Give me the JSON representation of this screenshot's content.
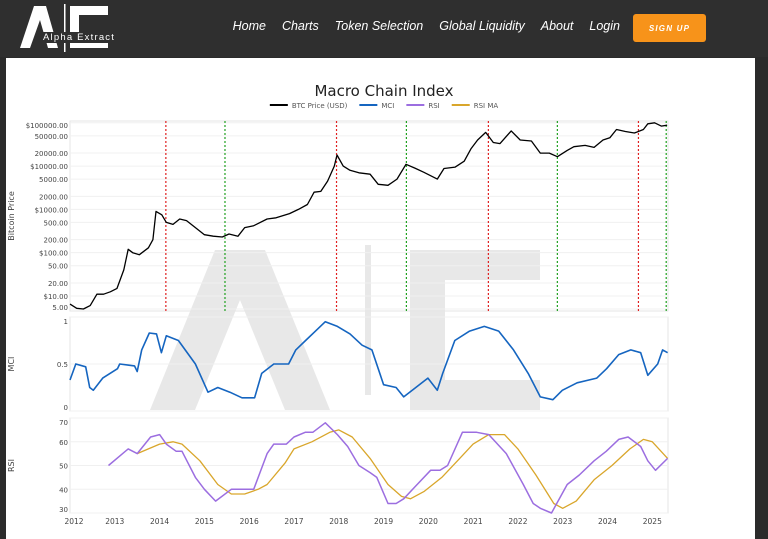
{
  "header": {
    "logo_text": "Alpha Extract",
    "nav": [
      "Home",
      "Charts",
      "Token Selection",
      "Global Liquidity",
      "About",
      "Login"
    ],
    "signup_label": "SIGN UP"
  },
  "colors": {
    "btc": "#000000",
    "mci": "#1565c0",
    "rsi": "#9c6ee0",
    "rsi_ma": "#d9a62b",
    "top_line": "#e02020",
    "bottom_line": "#1fa01f",
    "accent": "#f7931a"
  },
  "chart_data": {
    "type": "line",
    "title": "Macro Chain Index",
    "legend": [
      "BTC Price (USD)",
      "MCI",
      "RSI",
      "RSI MA"
    ],
    "legend_placement": "top-center",
    "x_ticks": [
      "2012",
      "2013",
      "2014",
      "2015",
      "2016",
      "2017",
      "2018",
      "2019",
      "2020",
      "2021",
      "2022",
      "2023",
      "2024",
      "2025"
    ],
    "xlim": [
      2012,
      2025.35
    ],
    "price_panel": {
      "ylabel": "Bitcoin Price",
      "scale": "log",
      "ylim": [
        4.5,
        110000
      ],
      "y_ticks": [
        {
          "v": 5,
          "l": "5.00"
        },
        {
          "v": 10,
          "l": "$10.00"
        },
        {
          "v": 20,
          "l": "20.00"
        },
        {
          "v": 50,
          "l": "50.00"
        },
        {
          "v": 100,
          "l": "$100.00"
        },
        {
          "v": 200,
          "l": "200.00"
        },
        {
          "v": 500,
          "l": "500.00"
        },
        {
          "v": 1000,
          "l": "$1000.00"
        },
        {
          "v": 2000,
          "l": "2000.00"
        },
        {
          "v": 5000,
          "l": "5000.00"
        },
        {
          "v": 10000,
          "l": "$10000.00"
        },
        {
          "v": 20000,
          "l": "20000.00"
        },
        {
          "v": 50000,
          "l": "50000.00"
        },
        {
          "v": 100000,
          "l": "$100000.00"
        }
      ],
      "btc": [
        [
          2012.0,
          6.5
        ],
        [
          2012.15,
          5.2
        ],
        [
          2012.3,
          5
        ],
        [
          2012.45,
          6
        ],
        [
          2012.6,
          11
        ],
        [
          2012.75,
          11
        ],
        [
          2012.9,
          12.5
        ],
        [
          2013.05,
          15
        ],
        [
          2013.2,
          40
        ],
        [
          2013.3,
          120
        ],
        [
          2013.4,
          100
        ],
        [
          2013.55,
          90
        ],
        [
          2013.75,
          130
        ],
        [
          2013.85,
          200
        ],
        [
          2013.92,
          900
        ],
        [
          2014.05,
          750
        ],
        [
          2014.15,
          500
        ],
        [
          2014.3,
          450
        ],
        [
          2014.45,
          600
        ],
        [
          2014.6,
          550
        ],
        [
          2014.8,
          380
        ],
        [
          2015.0,
          260
        ],
        [
          2015.2,
          240
        ],
        [
          2015.4,
          230
        ],
        [
          2015.55,
          270
        ],
        [
          2015.75,
          240
        ],
        [
          2015.9,
          380
        ],
        [
          2016.1,
          420
        ],
        [
          2016.4,
          600
        ],
        [
          2016.6,
          640
        ],
        [
          2016.9,
          800
        ],
        [
          2017.1,
          1000
        ],
        [
          2017.3,
          1300
        ],
        [
          2017.45,
          2500
        ],
        [
          2017.6,
          2600
        ],
        [
          2017.75,
          4500
        ],
        [
          2017.9,
          10000
        ],
        [
          2017.96,
          18000
        ],
        [
          2018.1,
          10000
        ],
        [
          2018.25,
          8000
        ],
        [
          2018.45,
          7000
        ],
        [
          2018.7,
          6500
        ],
        [
          2018.88,
          3800
        ],
        [
          2019.1,
          3600
        ],
        [
          2019.3,
          5000
        ],
        [
          2019.5,
          11000
        ],
        [
          2019.7,
          9000
        ],
        [
          2019.9,
          7200
        ],
        [
          2020.2,
          5000
        ],
        [
          2020.35,
          8800
        ],
        [
          2020.6,
          9500
        ],
        [
          2020.8,
          13000
        ],
        [
          2020.95,
          25000
        ],
        [
          2021.1,
          40000
        ],
        [
          2021.28,
          60000
        ],
        [
          2021.45,
          35000
        ],
        [
          2021.6,
          33000
        ],
        [
          2021.85,
          65000
        ],
        [
          2022.05,
          40000
        ],
        [
          2022.3,
          38000
        ],
        [
          2022.5,
          20000
        ],
        [
          2022.7,
          20000
        ],
        [
          2022.88,
          16500
        ],
        [
          2023.1,
          23000
        ],
        [
          2023.25,
          28000
        ],
        [
          2023.5,
          30000
        ],
        [
          2023.7,
          27000
        ],
        [
          2023.9,
          40000
        ],
        [
          2024.05,
          45000
        ],
        [
          2024.2,
          70000
        ],
        [
          2024.4,
          63000
        ],
        [
          2024.6,
          58000
        ],
        [
          2024.8,
          70000
        ],
        [
          2024.9,
          95000
        ],
        [
          2025.05,
          100000
        ],
        [
          2025.2,
          84000
        ],
        [
          2025.33,
          88000
        ]
      ],
      "top_markers": [
        2014.14,
        2017.95,
        2021.34,
        2024.69
      ],
      "bottom_markers": [
        2015.46,
        2019.51,
        2022.88,
        2025.31
      ]
    },
    "mci_panel": {
      "ylabel": "MCI",
      "ylim": [
        0,
        1
      ],
      "y_ticks": [
        {
          "v": 0,
          "l": "0"
        },
        {
          "v": 0.5,
          "l": "0.5"
        },
        {
          "v": 1,
          "l": "1"
        }
      ],
      "mci": [
        [
          2012.0,
          0.33
        ],
        [
          2012.13,
          0.5
        ],
        [
          2012.35,
          0.47
        ],
        [
          2012.44,
          0.25
        ],
        [
          2012.52,
          0.22
        ],
        [
          2012.73,
          0.35
        ],
        [
          2013.06,
          0.45
        ],
        [
          2013.11,
          0.5
        ],
        [
          2013.44,
          0.48
        ],
        [
          2013.5,
          0.42
        ],
        [
          2013.6,
          0.65
        ],
        [
          2013.77,
          0.83
        ],
        [
          2013.93,
          0.82
        ],
        [
          2014.04,
          0.62
        ],
        [
          2014.15,
          0.8
        ],
        [
          2014.42,
          0.75
        ],
        [
          2014.8,
          0.5
        ],
        [
          2015.08,
          0.2
        ],
        [
          2015.3,
          0.25
        ],
        [
          2015.57,
          0.2
        ],
        [
          2015.84,
          0.14
        ],
        [
          2016.12,
          0.14
        ],
        [
          2016.28,
          0.4
        ],
        [
          2016.55,
          0.5
        ],
        [
          2016.88,
          0.5
        ],
        [
          2017.04,
          0.65
        ],
        [
          2017.26,
          0.75
        ],
        [
          2017.48,
          0.85
        ],
        [
          2017.7,
          0.95
        ],
        [
          2017.97,
          0.9
        ],
        [
          2018.25,
          0.82
        ],
        [
          2018.52,
          0.7
        ],
        [
          2018.74,
          0.65
        ],
        [
          2019.0,
          0.28
        ],
        [
          2019.28,
          0.25
        ],
        [
          2019.45,
          0.15
        ],
        [
          2019.72,
          0.25
        ],
        [
          2019.99,
          0.35
        ],
        [
          2020.2,
          0.22
        ],
        [
          2020.32,
          0.4
        ],
        [
          2020.59,
          0.75
        ],
        [
          2020.92,
          0.85
        ],
        [
          2021.25,
          0.9
        ],
        [
          2021.57,
          0.85
        ],
        [
          2021.9,
          0.65
        ],
        [
          2022.23,
          0.4
        ],
        [
          2022.5,
          0.15
        ],
        [
          2022.78,
          0.12
        ],
        [
          2022.99,
          0.22
        ],
        [
          2023.32,
          0.3
        ],
        [
          2023.76,
          0.35
        ],
        [
          2023.98,
          0.45
        ],
        [
          2024.25,
          0.6
        ],
        [
          2024.52,
          0.65
        ],
        [
          2024.74,
          0.62
        ],
        [
          2024.9,
          0.38
        ],
        [
          2025.12,
          0.5
        ],
        [
          2025.23,
          0.65
        ],
        [
          2025.34,
          0.62
        ]
      ]
    },
    "rsi_panel": {
      "ylabel": "RSI",
      "ylim": [
        30,
        70
      ],
      "y_ticks": [
        {
          "v": 30,
          "l": "30"
        },
        {
          "v": 40,
          "l": "40"
        },
        {
          "v": 50,
          "l": "50"
        },
        {
          "v": 60,
          "l": "60"
        },
        {
          "v": 70,
          "l": "70"
        }
      ],
      "rsi": [
        [
          2012.86,
          50
        ],
        [
          2013.3,
          57
        ],
        [
          2013.5,
          55
        ],
        [
          2013.8,
          62
        ],
        [
          2014.0,
          63
        ],
        [
          2014.15,
          59
        ],
        [
          2014.37,
          56
        ],
        [
          2014.5,
          56
        ],
        [
          2014.8,
          45
        ],
        [
          2015.0,
          40
        ],
        [
          2015.25,
          35
        ],
        [
          2015.6,
          40
        ],
        [
          2016.1,
          40
        ],
        [
          2016.4,
          55
        ],
        [
          2016.55,
          59
        ],
        [
          2016.83,
          59
        ],
        [
          2017.0,
          62
        ],
        [
          2017.25,
          64
        ],
        [
          2017.42,
          64
        ],
        [
          2017.7,
          68
        ],
        [
          2017.97,
          63
        ],
        [
          2018.2,
          58
        ],
        [
          2018.45,
          50
        ],
        [
          2018.7,
          47
        ],
        [
          2018.85,
          45
        ],
        [
          2019.1,
          34
        ],
        [
          2019.28,
          34
        ],
        [
          2019.45,
          36
        ],
        [
          2019.7,
          41
        ],
        [
          2020.05,
          48
        ],
        [
          2020.26,
          48
        ],
        [
          2020.43,
          50
        ],
        [
          2020.76,
          64
        ],
        [
          2021.08,
          64
        ],
        [
          2021.35,
          63
        ],
        [
          2021.74,
          55
        ],
        [
          2022.12,
          42
        ],
        [
          2022.34,
          34
        ],
        [
          2022.5,
          32
        ],
        [
          2022.75,
          30
        ],
        [
          2023.1,
          42
        ],
        [
          2023.37,
          46
        ],
        [
          2023.7,
          52
        ],
        [
          2023.97,
          56
        ],
        [
          2024.25,
          61
        ],
        [
          2024.46,
          62
        ],
        [
          2024.74,
          58
        ],
        [
          2024.9,
          52
        ],
        [
          2025.07,
          48
        ],
        [
          2025.34,
          53
        ]
      ],
      "rsi_ma": [
        [
          2013.5,
          55
        ],
        [
          2014.0,
          59
        ],
        [
          2014.3,
          60
        ],
        [
          2014.5,
          59
        ],
        [
          2014.9,
          52
        ],
        [
          2015.3,
          42
        ],
        [
          2015.6,
          38
        ],
        [
          2015.9,
          38
        ],
        [
          2016.2,
          40
        ],
        [
          2016.4,
          42
        ],
        [
          2016.8,
          51
        ],
        [
          2017.0,
          57
        ],
        [
          2017.4,
          60
        ],
        [
          2017.8,
          64
        ],
        [
          2018.0,
          65
        ],
        [
          2018.3,
          62
        ],
        [
          2018.7,
          53
        ],
        [
          2019.1,
          42
        ],
        [
          2019.4,
          37
        ],
        [
          2019.6,
          36
        ],
        [
          2019.9,
          39
        ],
        [
          2020.3,
          45
        ],
        [
          2020.7,
          53
        ],
        [
          2021.0,
          59
        ],
        [
          2021.35,
          63
        ],
        [
          2021.7,
          63
        ],
        [
          2022.0,
          57
        ],
        [
          2022.4,
          46
        ],
        [
          2022.8,
          34
        ],
        [
          2023.0,
          32
        ],
        [
          2023.3,
          35
        ],
        [
          2023.7,
          44
        ],
        [
          2024.1,
          50
        ],
        [
          2024.5,
          57
        ],
        [
          2024.8,
          61
        ],
        [
          2025.0,
          60
        ],
        [
          2025.34,
          53
        ]
      ]
    }
  }
}
